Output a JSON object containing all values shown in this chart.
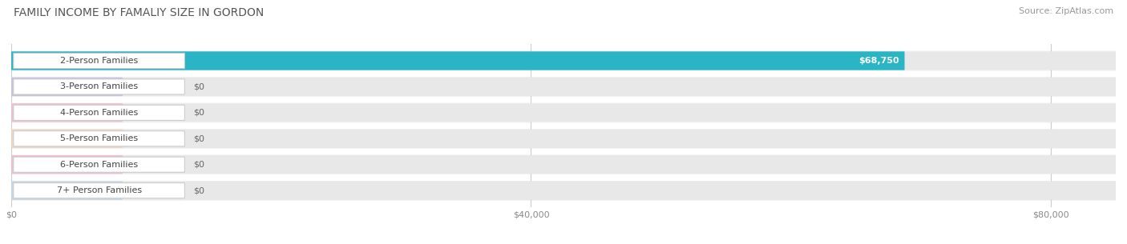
{
  "title": "FAMILY INCOME BY FAMALIY SIZE IN GORDON",
  "source": "Source: ZipAtlas.com",
  "categories": [
    "2-Person Families",
    "3-Person Families",
    "4-Person Families",
    "5-Person Families",
    "6-Person Families",
    "7+ Person Families"
  ],
  "values": [
    68750,
    0,
    0,
    0,
    0,
    0
  ],
  "bar_colors": [
    "#2ab5c4",
    "#a8a8d8",
    "#f0a0b8",
    "#f5c898",
    "#f0a0b8",
    "#a8c8e8"
  ],
  "value_labels": [
    "$68,750",
    "$0",
    "$0",
    "$0",
    "$0",
    "$0"
  ],
  "xlim_max": 85000,
  "xticks": [
    0,
    40000,
    80000
  ],
  "xticklabels": [
    "$0",
    "$40,000",
    "$80,000"
  ],
  "bg_color": "#ffffff",
  "bar_bg_color": "#eeeeee",
  "row_bg_color": "#f5f5f5",
  "title_fontsize": 10,
  "source_fontsize": 8,
  "label_fontsize": 8,
  "value_fontsize": 8
}
